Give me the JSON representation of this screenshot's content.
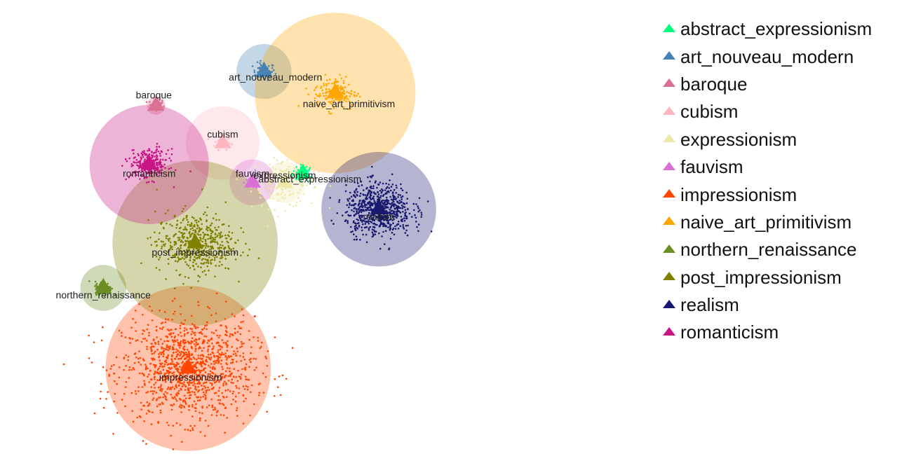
{
  "chart_data": {
    "type": "scatter",
    "title": "",
    "xlabel": "",
    "ylabel": "",
    "axes_visible": false,
    "grid": false,
    "legend_position": "right",
    "legend_marker": "triangle",
    "series": [
      {
        "name": "abstract_expressionism",
        "color": "#00ff7f",
        "centroid": [
          5.7,
          2.3
        ],
        "radius": 0.3,
        "count": 40,
        "spread": 0.4,
        "label_offset": [
          0.3,
          -0.3
        ]
      },
      {
        "name": "art_nouveau_modern",
        "color": "#4682b4",
        "centroid": [
          4.0,
          8.0
        ],
        "radius": 1.2,
        "count": 60,
        "spread": 0.4,
        "label_offset": [
          0.5,
          -0.3
        ]
      },
      {
        "name": "baroque",
        "color": "#db7093",
        "centroid": [
          -0.7,
          6.1
        ],
        "radius": 0.4,
        "count": 40,
        "spread": 0.3,
        "label_offset": [
          -0.1,
          0.6
        ]
      },
      {
        "name": "cubism",
        "color": "#ffb6c1",
        "centroid": [
          2.2,
          4.0
        ],
        "radius": 1.6,
        "count": 50,
        "spread": 0.3,
        "label_offset": [
          0.0,
          0.5
        ]
      },
      {
        "name": "expressionism",
        "color": "#eee8aa",
        "centroid": [
          4.9,
          1.8
        ],
        "radius": 0.9,
        "count": 150,
        "spread": 1.2,
        "label_offset": [
          0.0,
          0.4
        ]
      },
      {
        "name": "fauvism",
        "color": "#da70d6",
        "centroid": [
          3.5,
          1.8
        ],
        "radius": 1.0,
        "count": 40,
        "spread": 0.3,
        "label_offset": [
          0.0,
          0.5
        ]
      },
      {
        "name": "impressionism",
        "color": "#ff4500",
        "centroid": [
          0.7,
          -8.6
        ],
        "radius": 3.6,
        "count": 1200,
        "spread": 2.4,
        "label_offset": [
          0.1,
          -0.5
        ]
      },
      {
        "name": "naive_art_primitivism",
        "color": "#ffa500",
        "centroid": [
          7.1,
          6.8
        ],
        "radius": 3.5,
        "count": 150,
        "spread": 0.8,
        "label_offset": [
          0.6,
          -0.6
        ]
      },
      {
        "name": "northern_renaissance",
        "color": "#6b8e23",
        "centroid": [
          -3.0,
          -4.1
        ],
        "radius": 1.0,
        "count": 120,
        "spread": 0.3,
        "label_offset": [
          0.0,
          -0.4
        ]
      },
      {
        "name": "post_impressionism",
        "color": "#808000",
        "centroid": [
          1.0,
          -1.6
        ],
        "radius": 3.6,
        "count": 500,
        "spread": 1.4,
        "label_offset": [
          0.0,
          -0.5
        ]
      },
      {
        "name": "realism",
        "color": "#191970",
        "centroid": [
          9.0,
          0.3
        ],
        "radius": 2.5,
        "count": 700,
        "spread": 1.2,
        "label_offset": [
          0.0,
          -0.4
        ]
      },
      {
        "name": "romanticism",
        "color": "#c71585",
        "centroid": [
          -1.0,
          2.8
        ],
        "radius": 2.6,
        "count": 250,
        "spread": 0.7,
        "label_offset": [
          -0.0,
          -0.5
        ]
      }
    ],
    "xlim": [
      -7.5,
      20
    ],
    "ylim": [
      -13.5,
      12
    ]
  }
}
